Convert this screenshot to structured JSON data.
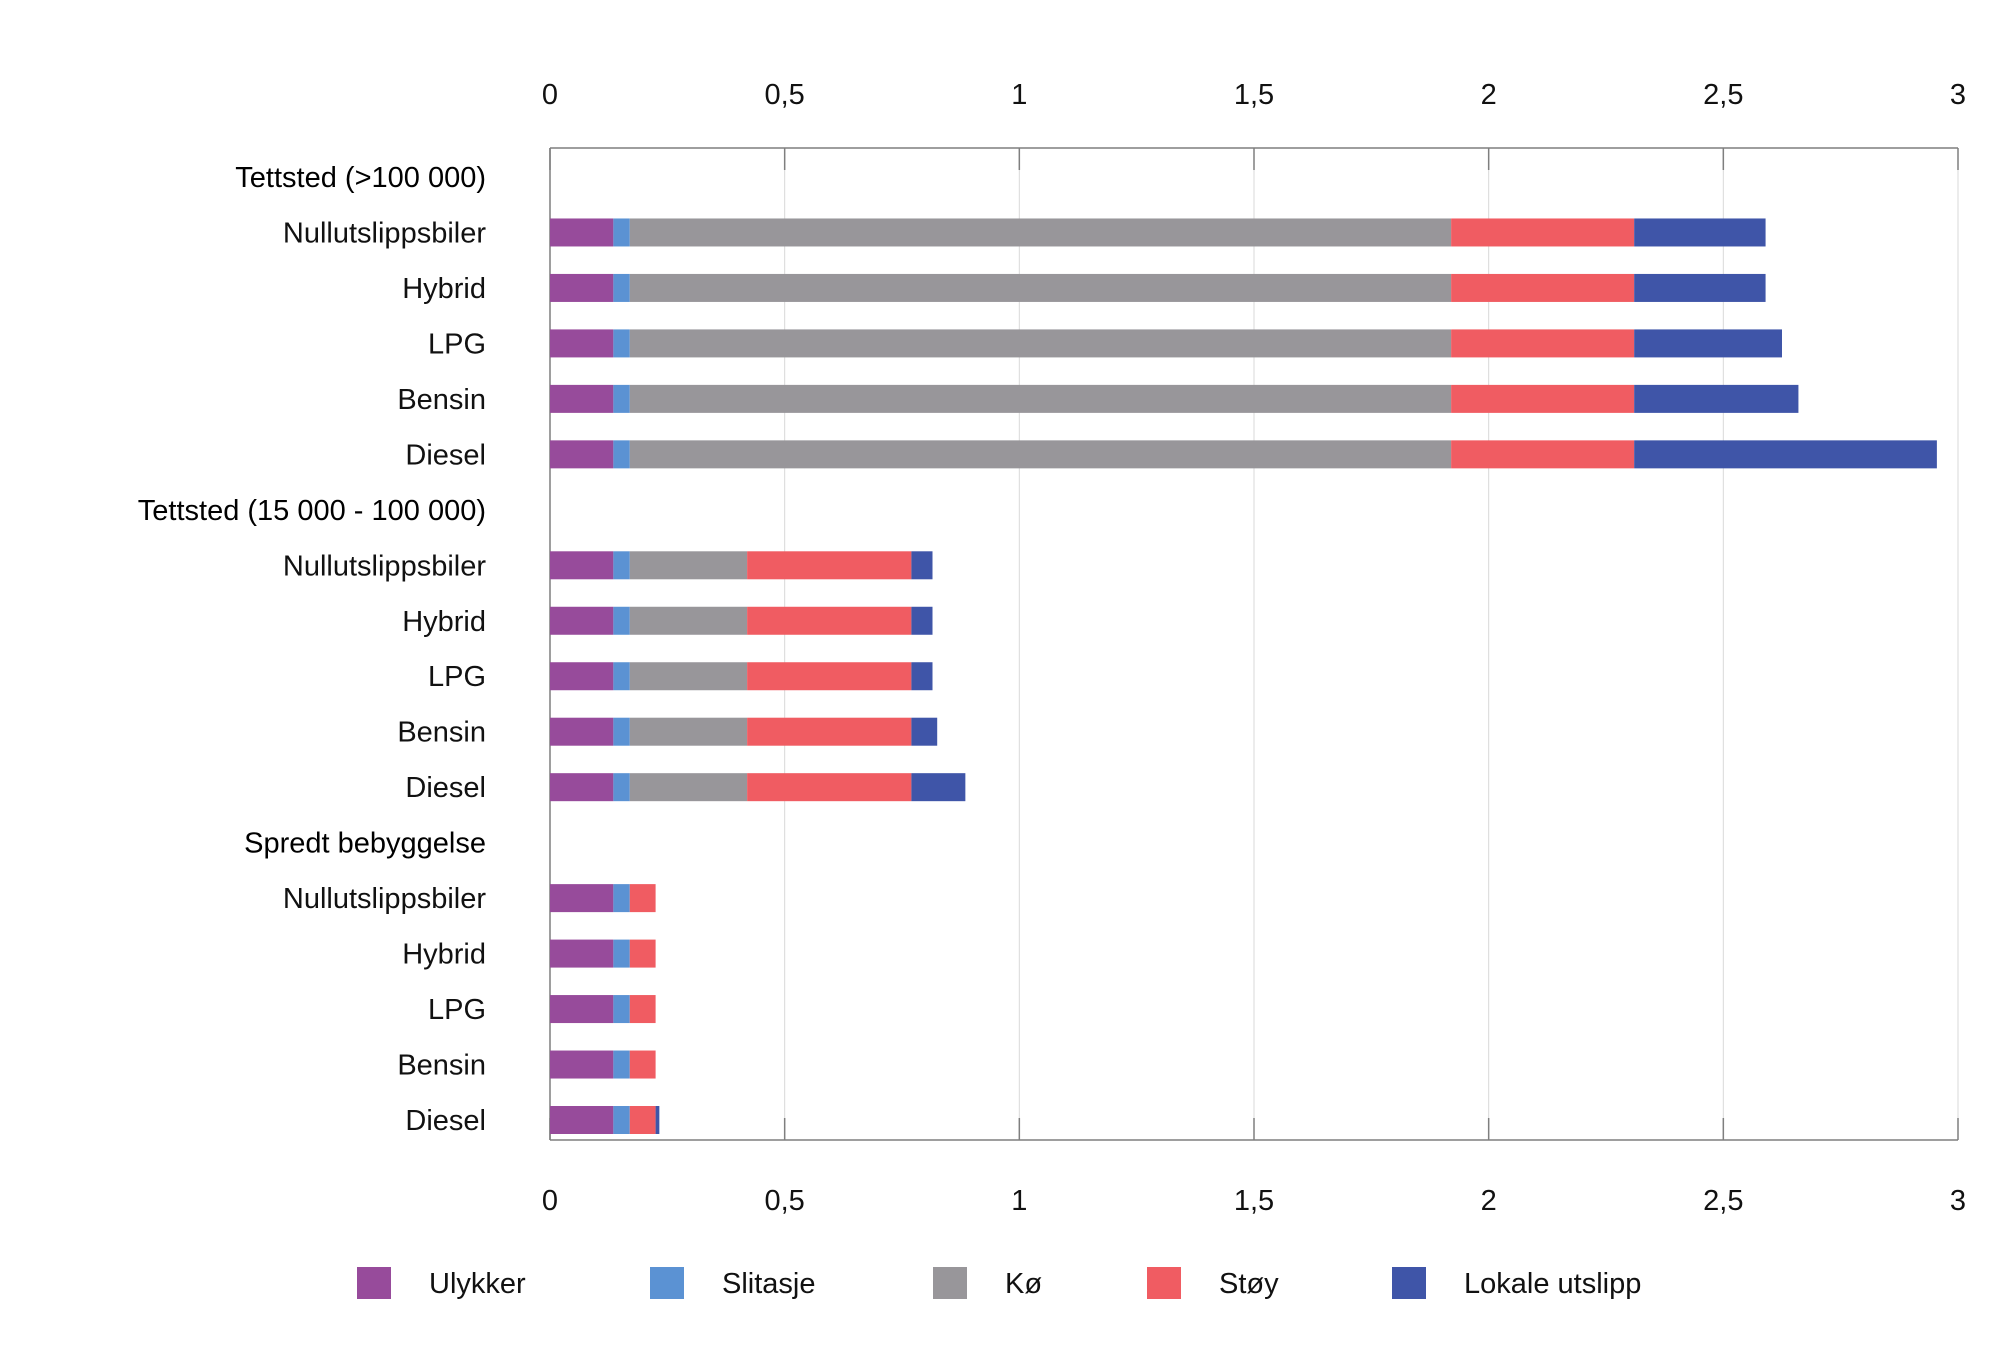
{
  "chart_data": {
    "type": "bar",
    "orientation": "horizontal",
    "stacked": true,
    "xlim": [
      0,
      3
    ],
    "x_ticks": [
      "0",
      "0,5",
      "1",
      "1,5",
      "2",
      "2,5",
      "3"
    ],
    "x_tick_values": [
      0,
      0.5,
      1,
      1.5,
      2,
      2.5,
      3
    ],
    "grid": true,
    "legend_position": "bottom",
    "series": [
      {
        "name": "Ulykker",
        "color": "#974B9B"
      },
      {
        "name": "Slitasje",
        "color": "#5B92D3"
      },
      {
        "name": "Kø",
        "color": "#98969A"
      },
      {
        "name": "Støy",
        "color": "#F05C62"
      },
      {
        "name": "Lokale utslipp",
        "color": "#3F55A8"
      }
    ],
    "groups": [
      {
        "label": "Tettsted (>100 000)",
        "rows": [
          {
            "label": "Nullutslippsbiler",
            "values": [
              0.135,
              0.035,
              1.75,
              0.39,
              0.28
            ]
          },
          {
            "label": "Hybrid",
            "values": [
              0.135,
              0.035,
              1.75,
              0.39,
              0.28
            ]
          },
          {
            "label": "LPG",
            "values": [
              0.135,
              0.035,
              1.75,
              0.39,
              0.315
            ]
          },
          {
            "label": "Bensin",
            "values": [
              0.135,
              0.035,
              1.75,
              0.39,
              0.35
            ]
          },
          {
            "label": "Diesel",
            "values": [
              0.135,
              0.035,
              1.75,
              0.39,
              0.645
            ]
          }
        ]
      },
      {
        "label": "Tettsted (15 000 - 100 000)",
        "rows": [
          {
            "label": "Nullutslippsbiler",
            "values": [
              0.135,
              0.035,
              0.25,
              0.35,
              0.045
            ]
          },
          {
            "label": "Hybrid",
            "values": [
              0.135,
              0.035,
              0.25,
              0.35,
              0.045
            ]
          },
          {
            "label": "LPG",
            "values": [
              0.135,
              0.035,
              0.25,
              0.35,
              0.045
            ]
          },
          {
            "label": "Bensin",
            "values": [
              0.135,
              0.035,
              0.25,
              0.35,
              0.055
            ]
          },
          {
            "label": "Diesel",
            "values": [
              0.135,
              0.035,
              0.25,
              0.35,
              0.115
            ]
          }
        ]
      },
      {
        "label": "Spredt bebyggelse",
        "rows": [
          {
            "label": "Nullutslippsbiler",
            "values": [
              0.135,
              0.035,
              0,
              0.055,
              0
            ]
          },
          {
            "label": "Hybrid",
            "values": [
              0.135,
              0.035,
              0,
              0.055,
              0
            ]
          },
          {
            "label": "LPG",
            "values": [
              0.135,
              0.035,
              0,
              0.055,
              0
            ]
          },
          {
            "label": "Bensin",
            "values": [
              0.135,
              0.035,
              0,
              0.055,
              0
            ]
          },
          {
            "label": "Diesel",
            "values": [
              0.135,
              0.035,
              0,
              0.055,
              0.008
            ]
          }
        ]
      }
    ]
  }
}
